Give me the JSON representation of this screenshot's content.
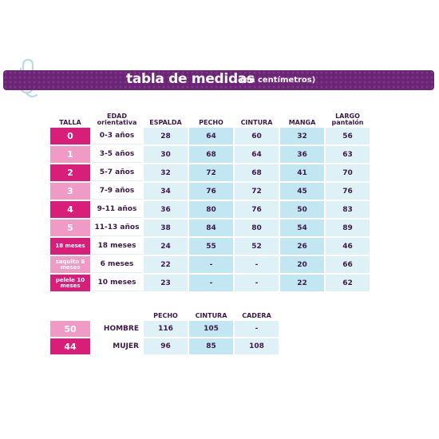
{
  "header": {
    "title": "tabla de medidas",
    "subtitle": "(en centímetros)"
  },
  "colors": {
    "banner": "#6c2576",
    "size_dark": "#d81e79",
    "size_light": "#ef9bc6",
    "cell_light": "#def1f7",
    "cell_mid": "#c2e7f3"
  },
  "size_table": {
    "columns": [
      "TALLA",
      "EDAD orientativa",
      "ESPALDA",
      "PECHO",
      "CINTURA",
      "MANGA",
      "LARGO pantalón"
    ],
    "rows": [
      {
        "talla": "0",
        "edad": "0-3 años",
        "espalda": "28",
        "pecho": "64",
        "cintura": "60",
        "manga": "32",
        "largo": "56"
      },
      {
        "talla": "1",
        "edad": "3-5 años",
        "espalda": "30",
        "pecho": "68",
        "cintura": "64",
        "manga": "36",
        "largo": "63"
      },
      {
        "talla": "2",
        "edad": "5-7 años",
        "espalda": "32",
        "pecho": "72",
        "cintura": "68",
        "manga": "41",
        "largo": "70"
      },
      {
        "talla": "3",
        "edad": "7-9 años",
        "espalda": "34",
        "pecho": "76",
        "cintura": "72",
        "manga": "45",
        "largo": "76"
      },
      {
        "talla": "4",
        "edad": "9-11 años",
        "espalda": "36",
        "pecho": "80",
        "cintura": "76",
        "manga": "50",
        "largo": "83"
      },
      {
        "talla": "5",
        "edad": "11-13 años",
        "espalda": "38",
        "pecho": "84",
        "cintura": "80",
        "manga": "54",
        "largo": "89"
      },
      {
        "talla": "18 meses",
        "edad": "18 meses",
        "espalda": "24",
        "pecho": "55",
        "cintura": "52",
        "manga": "26",
        "largo": "46"
      },
      {
        "talla": "saquito 6 meses",
        "edad": "6 meses",
        "espalda": "22",
        "pecho": "-",
        "cintura": "-",
        "manga": "20",
        "largo": "66"
      },
      {
        "talla": "pelele 10 meses",
        "edad": "10 meses",
        "espalda": "23",
        "pecho": "-",
        "cintura": "-",
        "manga": "22",
        "largo": "62"
      }
    ]
  },
  "adult_table": {
    "columns": [
      "PECHO",
      "CINTURA",
      "CADERA"
    ],
    "rows": [
      {
        "talla": "50",
        "label": "HOMBRE",
        "pecho": "116",
        "cintura": "105",
        "cadera": "-"
      },
      {
        "talla": "44",
        "label": "MUJER",
        "pecho": "96",
        "cintura": "85",
        "cadera": "108"
      }
    ]
  }
}
